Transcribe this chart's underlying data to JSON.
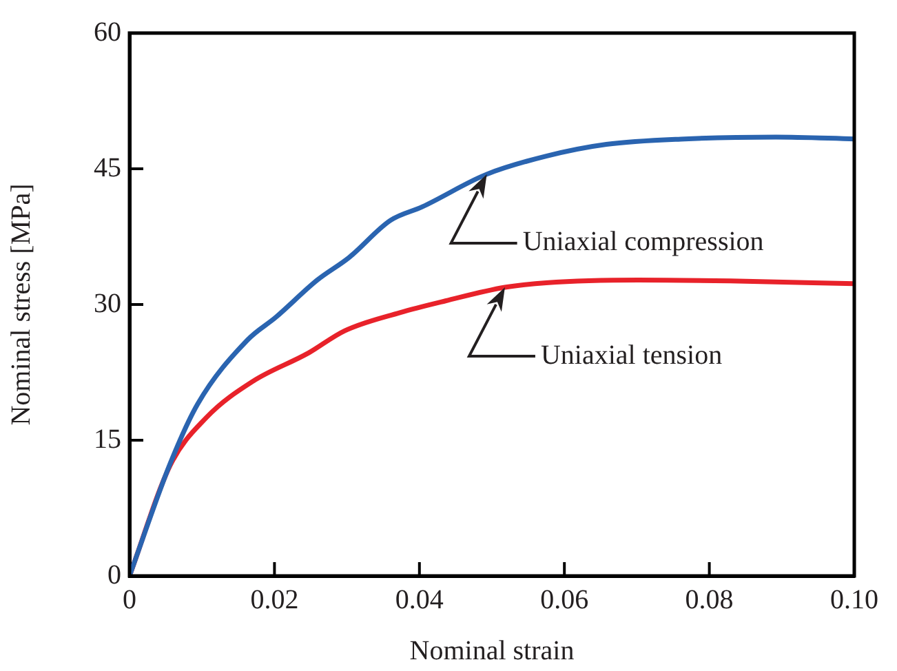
{
  "chart_data": {
    "type": "line",
    "xlabel": "Nominal strain",
    "ylabel": "Nominal stress [MPa]",
    "xlim": [
      0,
      0.1
    ],
    "ylim": [
      0,
      60
    ],
    "xticks": [
      0,
      0.02,
      0.04,
      0.06,
      0.08,
      {
        "value": 0.1,
        "label": "0.10"
      }
    ],
    "yticks": [
      0,
      15,
      30,
      45,
      60
    ],
    "grid": false,
    "legend": false,
    "marker": "none",
    "line_style": "solid",
    "series": [
      {
        "color": "#2a64b0",
        "x": [
          0,
          0.0056,
          0.0094,
          0.0163,
          0.0202,
          0.0259,
          0.0303,
          0.036,
          0.0404,
          0.0493,
          0.0575,
          0.0658,
          0.0766,
          0.0892,
          0.1
        ],
        "values": [
          0,
          12.4,
          19,
          26.1,
          28.6,
          32.7,
          35.2,
          39.3,
          40.8,
          44.4,
          46.4,
          47.7,
          48.3,
          48.5,
          48.3
        ]
      },
      {
        "color": "#e8222a",
        "x": [
          0,
          0.0056,
          0.0106,
          0.017,
          0.0246,
          0.0297,
          0.0373,
          0.0436,
          0.0518,
          0.0575,
          0.0702,
          0.0829,
          0.1
        ],
        "values": [
          0,
          12.2,
          17.5,
          21.5,
          24.6,
          27.1,
          29.1,
          30.4,
          31.9,
          32.4,
          32.7,
          32.6,
          32.3
        ]
      }
    ],
    "annotations": [
      {
        "text": "Uniaxial compression",
        "x": 0.0493,
        "y": 44.4
      },
      {
        "text": "Uniaxial tension",
        "x": 0.0518,
        "y": 31.9
      }
    ]
  }
}
